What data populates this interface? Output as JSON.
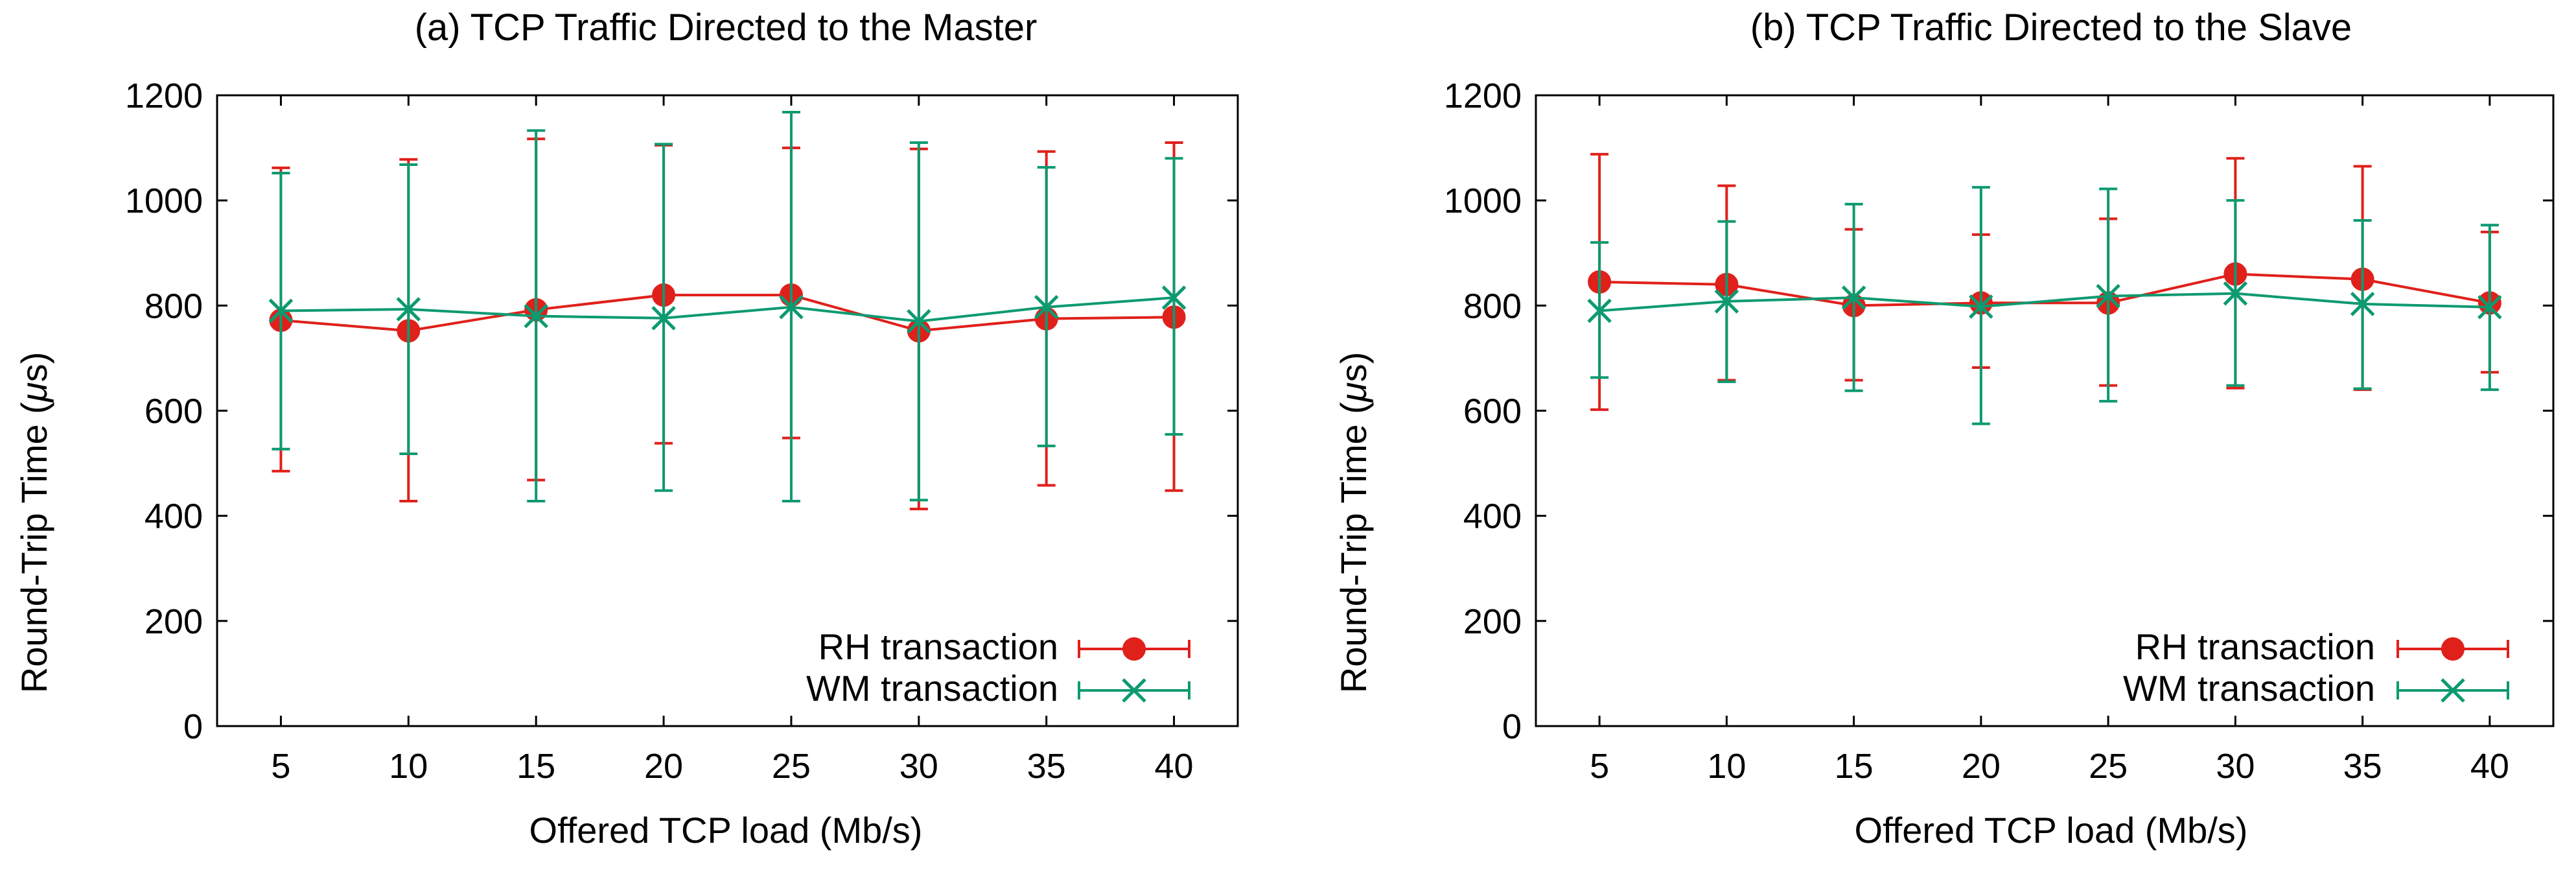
{
  "colors": {
    "rh": "#e0201b",
    "wm": "#0d9a70",
    "axis": "#000000"
  },
  "chart_data": [
    {
      "type": "line",
      "title": "(a) TCP Traffic Directed to the Master",
      "xlabel": "Offered TCP load (Mb/s)",
      "ylabel_prefix": "Round-Trip Time (",
      "ylabel_mu": "μ",
      "ylabel_suffix": "s)",
      "ylim": [
        0,
        1200
      ],
      "yticks": [
        0,
        200,
        400,
        600,
        800,
        1000,
        1200
      ],
      "x": [
        5,
        10,
        15,
        20,
        25,
        30,
        35,
        40
      ],
      "legend_position": "bottom-right",
      "series": [
        {
          "name": "RH transaction",
          "marker": "circle",
          "values": [
            772,
            752,
            792,
            820,
            820,
            752,
            775,
            778
          ],
          "err_low": [
            485,
            428,
            468,
            538,
            548,
            413,
            458,
            448
          ],
          "err_high": [
            1062,
            1078,
            1117,
            1105,
            1100,
            1098,
            1093,
            1110
          ]
        },
        {
          "name": "WM transaction",
          "marker": "x",
          "values": [
            790,
            793,
            780,
            776,
            797,
            770,
            797,
            815
          ],
          "err_low": [
            527,
            518,
            428,
            448,
            428,
            430,
            533,
            555
          ],
          "err_high": [
            1052,
            1068,
            1133,
            1107,
            1168,
            1110,
            1063,
            1080
          ]
        }
      ]
    },
    {
      "type": "line",
      "title": "(b) TCP Traffic Directed to the Slave",
      "xlabel": "Offered TCP load (Mb/s)",
      "ylabel_prefix": "Round-Trip Time (",
      "ylabel_mu": "μ",
      "ylabel_suffix": "s)",
      "ylim": [
        0,
        1200
      ],
      "yticks": [
        0,
        200,
        400,
        600,
        800,
        1000,
        1200
      ],
      "x": [
        5,
        10,
        15,
        20,
        25,
        30,
        35,
        40
      ],
      "legend_position": "bottom-right",
      "series": [
        {
          "name": "RH transaction",
          "marker": "circle",
          "values": [
            845,
            840,
            800,
            805,
            805,
            860,
            850,
            805
          ],
          "err_low": [
            602,
            658,
            658,
            682,
            648,
            643,
            640,
            673
          ],
          "err_high": [
            1088,
            1028,
            945,
            935,
            965,
            1080,
            1065,
            940
          ]
        },
        {
          "name": "WM transaction",
          "marker": "x",
          "values": [
            790,
            808,
            815,
            798,
            818,
            823,
            803,
            797
          ],
          "err_low": [
            663,
            655,
            638,
            575,
            618,
            648,
            642,
            640
          ],
          "err_high": [
            920,
            960,
            993,
            1025,
            1022,
            1000,
            962,
            953
          ]
        }
      ]
    }
  ]
}
